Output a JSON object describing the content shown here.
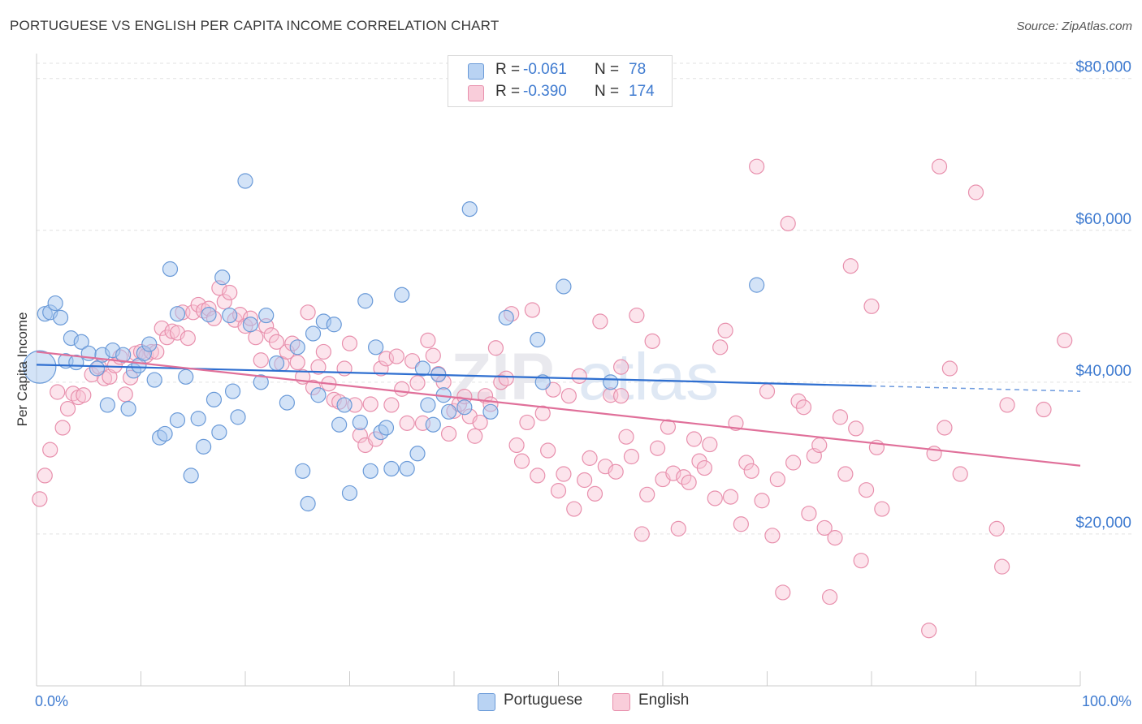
{
  "title": "PORTUGUESE VS ENGLISH PER CAPITA INCOME CORRELATION CHART",
  "source": "Source: ZipAtlas.com",
  "legend": {
    "rows": [
      {
        "r_label": "R =",
        "r_value": "-0.061",
        "n_label": "N =",
        "n_value": "78",
        "color": "#a8c8f0",
        "stroke": "#6a9ad8"
      },
      {
        "r_label": "R =",
        "r_value": "-0.390",
        "n_label": "N =",
        "n_value": "174",
        "color": "#f8c4d4",
        "stroke": "#e890ad"
      }
    ]
  },
  "bottom_legend": {
    "portuguese": "Portuguese",
    "english": "English"
  },
  "chart_data": {
    "type": "scatter",
    "title": "PORTUGUESE VS ENGLISH PER CAPITA INCOME CORRELATION CHART",
    "ylabel": "Per Capita Income",
    "xlabel": "",
    "x_tick_labels": [
      "0.0%",
      "100.0%"
    ],
    "y_tick_labels": [
      "$20,000",
      "$40,000",
      "$60,000",
      "$80,000"
    ],
    "y_ticks": [
      20000,
      40000,
      60000,
      80000
    ],
    "xlim": [
      0,
      100
    ],
    "ylim": [
      0,
      82000
    ],
    "grid": true,
    "legend_position": "top-center",
    "watermark": "ZIPatlas",
    "colors": {
      "portuguese": "#6a9ad8",
      "portuguese_fill": "#a8c8f0",
      "english": "#e890ad",
      "english_fill": "#f8c4d4",
      "blue_line": "#2f6fd0",
      "pink_line": "#e0709a",
      "axis_text": "#3f7bd0"
    },
    "series": [
      {
        "name": "Portuguese",
        "trend": {
          "x0": 0,
          "y0": 42300,
          "x1": 80,
          "y1": 39500,
          "dash_to": 100,
          "dash_y": 38800
        },
        "points": [
          [
            0.3,
            42000
          ],
          [
            0.8,
            49000
          ],
          [
            1.3,
            49200
          ],
          [
            1.8,
            50400
          ],
          [
            2.3,
            48500
          ],
          [
            2.8,
            42800
          ],
          [
            3.3,
            45800
          ],
          [
            3.8,
            42600
          ],
          [
            4.3,
            45300
          ],
          [
            5.0,
            43800
          ],
          [
            5.8,
            41800
          ],
          [
            6.3,
            43600
          ],
          [
            6.8,
            37000
          ],
          [
            7.3,
            44200
          ],
          [
            8.3,
            43600
          ],
          [
            8.8,
            36500
          ],
          [
            9.3,
            41500
          ],
          [
            9.8,
            42200
          ],
          [
            10.3,
            43800
          ],
          [
            10.8,
            45000
          ],
          [
            11.3,
            40300
          ],
          [
            11.8,
            32700
          ],
          [
            12.3,
            33200
          ],
          [
            12.8,
            54900
          ],
          [
            13.5,
            35000
          ],
          [
            13.5,
            49000
          ],
          [
            14.3,
            40700
          ],
          [
            14.8,
            27700
          ],
          [
            15.5,
            35200
          ],
          [
            16.0,
            31500
          ],
          [
            16.5,
            48900
          ],
          [
            17.0,
            37700
          ],
          [
            17.5,
            33400
          ],
          [
            17.8,
            53800
          ],
          [
            18.5,
            48800
          ],
          [
            18.8,
            38800
          ],
          [
            19.3,
            35400
          ],
          [
            20.0,
            66500
          ],
          [
            20.5,
            47600
          ],
          [
            21.5,
            40000
          ],
          [
            22.0,
            48800
          ],
          [
            23.0,
            42500
          ],
          [
            24.0,
            37300
          ],
          [
            25.0,
            44600
          ],
          [
            25.5,
            28300
          ],
          [
            26.0,
            24000
          ],
          [
            26.5,
            46400
          ],
          [
            27.0,
            38300
          ],
          [
            27.5,
            48000
          ],
          [
            28.5,
            47600
          ],
          [
            29.0,
            34400
          ],
          [
            29.5,
            37000
          ],
          [
            30.0,
            25400
          ],
          [
            31.0,
            34700
          ],
          [
            31.5,
            50700
          ],
          [
            32.0,
            28300
          ],
          [
            32.5,
            44600
          ],
          [
            33.0,
            33400
          ],
          [
            33.5,
            34000
          ],
          [
            34.0,
            28600
          ],
          [
            35.0,
            51500
          ],
          [
            35.5,
            28600
          ],
          [
            36.5,
            30600
          ],
          [
            37.0,
            41800
          ],
          [
            37.5,
            37000
          ],
          [
            38.0,
            34400
          ],
          [
            38.5,
            41000
          ],
          [
            39.0,
            38300
          ],
          [
            39.5,
            36100
          ],
          [
            41.0,
            36700
          ],
          [
            41.5,
            62800
          ],
          [
            43.5,
            36100
          ],
          [
            45.0,
            48500
          ],
          [
            48.0,
            45600
          ],
          [
            48.5,
            40000
          ],
          [
            50.5,
            52600
          ],
          [
            69.0,
            52800
          ],
          [
            55.0,
            40000
          ]
        ]
      },
      {
        "name": "English",
        "trend": {
          "x0": 0,
          "y0": 44000,
          "x1": 100,
          "y1": 29000
        },
        "points": [
          [
            0.3,
            24600
          ],
          [
            0.8,
            27700
          ],
          [
            1.3,
            31100
          ],
          [
            2.0,
            38700
          ],
          [
            2.5,
            34000
          ],
          [
            3.0,
            36500
          ],
          [
            3.5,
            38500
          ],
          [
            4.0,
            38000
          ],
          [
            4.5,
            38300
          ],
          [
            5.3,
            41000
          ],
          [
            6.0,
            42000
          ],
          [
            6.5,
            40500
          ],
          [
            7.0,
            40700
          ],
          [
            7.5,
            42200
          ],
          [
            8.0,
            43300
          ],
          [
            8.5,
            38400
          ],
          [
            9.0,
            40600
          ],
          [
            9.5,
            43800
          ],
          [
            10.0,
            44000
          ],
          [
            10.5,
            43500
          ],
          [
            11.0,
            44000
          ],
          [
            11.5,
            44000
          ],
          [
            12.0,
            47100
          ],
          [
            12.5,
            45900
          ],
          [
            13.0,
            46700
          ],
          [
            13.5,
            46500
          ],
          [
            14.0,
            49200
          ],
          [
            14.5,
            45800
          ],
          [
            15.0,
            49200
          ],
          [
            15.5,
            50200
          ],
          [
            16.0,
            49400
          ],
          [
            16.5,
            49700
          ],
          [
            17.0,
            48400
          ],
          [
            17.5,
            52400
          ],
          [
            18.0,
            50600
          ],
          [
            18.5,
            51800
          ],
          [
            19.0,
            48200
          ],
          [
            19.5,
            48900
          ],
          [
            20.0,
            47400
          ],
          [
            20.5,
            48400
          ],
          [
            21.0,
            45900
          ],
          [
            21.5,
            42900
          ],
          [
            22.0,
            47400
          ],
          [
            22.5,
            46200
          ],
          [
            23.0,
            45300
          ],
          [
            23.5,
            42400
          ],
          [
            24.0,
            44000
          ],
          [
            24.5,
            45100
          ],
          [
            25.0,
            42600
          ],
          [
            25.5,
            40700
          ],
          [
            26.0,
            49200
          ],
          [
            26.5,
            39300
          ],
          [
            27.0,
            42000
          ],
          [
            27.5,
            44000
          ],
          [
            28.0,
            39800
          ],
          [
            28.5,
            37700
          ],
          [
            29.0,
            37400
          ],
          [
            29.5,
            41800
          ],
          [
            30.0,
            45100
          ],
          [
            30.5,
            37000
          ],
          [
            31.0,
            33000
          ],
          [
            31.5,
            31700
          ],
          [
            32.0,
            37100
          ],
          [
            32.5,
            32500
          ],
          [
            33.0,
            41800
          ],
          [
            33.5,
            43100
          ],
          [
            34.0,
            37000
          ],
          [
            34.5,
            43400
          ],
          [
            35.0,
            39100
          ],
          [
            35.5,
            34600
          ],
          [
            36.0,
            42800
          ],
          [
            36.5,
            39900
          ],
          [
            37.0,
            34600
          ],
          [
            37.5,
            45500
          ],
          [
            38.0,
            43500
          ],
          [
            38.5,
            41100
          ],
          [
            39.0,
            40000
          ],
          [
            39.5,
            33200
          ],
          [
            40.0,
            36200
          ],
          [
            40.5,
            37100
          ],
          [
            41.0,
            38100
          ],
          [
            41.5,
            35500
          ],
          [
            42.0,
            32900
          ],
          [
            42.5,
            34700
          ],
          [
            43.0,
            38200
          ],
          [
            43.5,
            37100
          ],
          [
            44.0,
            44500
          ],
          [
            44.5,
            40000
          ],
          [
            45.0,
            40500
          ],
          [
            45.5,
            49000
          ],
          [
            46.0,
            31700
          ],
          [
            46.5,
            29600
          ],
          [
            47.0,
            34700
          ],
          [
            47.5,
            49500
          ],
          [
            48.0,
            27700
          ],
          [
            48.5,
            35900
          ],
          [
            49.0,
            31000
          ],
          [
            49.5,
            39000
          ],
          [
            50.0,
            25700
          ],
          [
            50.5,
            27900
          ],
          [
            51.0,
            38200
          ],
          [
            51.5,
            23300
          ],
          [
            52.0,
            40800
          ],
          [
            52.5,
            27100
          ],
          [
            53.0,
            30000
          ],
          [
            53.5,
            25300
          ],
          [
            54.0,
            48000
          ],
          [
            54.5,
            28900
          ],
          [
            55.0,
            38300
          ],
          [
            55.5,
            28200
          ],
          [
            56.0,
            38200
          ],
          [
            56.5,
            32800
          ],
          [
            57.0,
            30200
          ],
          [
            57.5,
            48800
          ],
          [
            58.0,
            20000
          ],
          [
            58.5,
            25200
          ],
          [
            59.0,
            45400
          ],
          [
            59.5,
            31300
          ],
          [
            60.0,
            27200
          ],
          [
            60.5,
            34100
          ],
          [
            61.0,
            28000
          ],
          [
            61.5,
            20700
          ],
          [
            62.0,
            27500
          ],
          [
            62.5,
            26800
          ],
          [
            63.0,
            32500
          ],
          [
            63.5,
            29600
          ],
          [
            64.0,
            28700
          ],
          [
            64.5,
            31800
          ],
          [
            65.0,
            24700
          ],
          [
            65.5,
            44600
          ],
          [
            66.0,
            46800
          ],
          [
            66.5,
            24900
          ],
          [
            67.0,
            34600
          ],
          [
            67.5,
            21300
          ],
          [
            68.0,
            29400
          ],
          [
            68.5,
            28300
          ],
          [
            69.0,
            68400
          ],
          [
            69.5,
            24400
          ],
          [
            70.0,
            38800
          ],
          [
            70.5,
            19800
          ],
          [
            71.0,
            27200
          ],
          [
            71.5,
            12300
          ],
          [
            72.0,
            60900
          ],
          [
            72.5,
            29400
          ],
          [
            73.0,
            37500
          ],
          [
            73.5,
            36700
          ],
          [
            74.0,
            22700
          ],
          [
            74.5,
            30300
          ],
          [
            75.0,
            31700
          ],
          [
            75.5,
            20800
          ],
          [
            76.0,
            11700
          ],
          [
            76.5,
            19500
          ],
          [
            77.0,
            35400
          ],
          [
            77.5,
            27900
          ],
          [
            78.0,
            55300
          ],
          [
            78.5,
            33900
          ],
          [
            79.0,
            16500
          ],
          [
            79.5,
            25800
          ],
          [
            80.0,
            50000
          ],
          [
            80.5,
            31400
          ],
          [
            81.0,
            23300
          ],
          [
            85.5,
            7300
          ],
          [
            86.0,
            30600
          ],
          [
            86.5,
            68400
          ],
          [
            87.0,
            34000
          ],
          [
            87.5,
            41800
          ],
          [
            88.5,
            27900
          ],
          [
            90.0,
            65000
          ],
          [
            92.0,
            20700
          ],
          [
            92.5,
            15700
          ],
          [
            93.0,
            37000
          ],
          [
            96.5,
            36400
          ],
          [
            98.5,
            45500
          ],
          [
            56.0,
            42000
          ]
        ]
      }
    ]
  }
}
